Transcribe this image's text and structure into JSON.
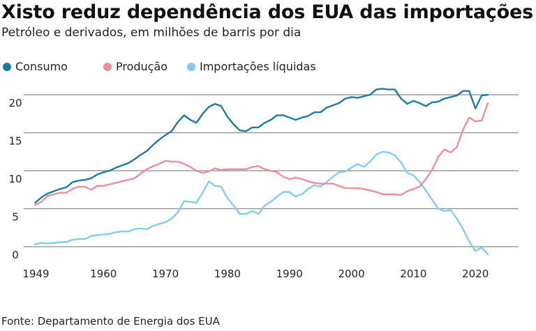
{
  "header": {
    "title": "Xisto reduz dependência dos EUA das importações",
    "subtitle": "Petróleo e derivados, em milhões de barris por dia"
  },
  "legend": [
    {
      "label": "Consumo",
      "color": "#1a7ca6"
    },
    {
      "label": "Produção",
      "color": "#ee8e98"
    },
    {
      "label": "Importações líquidas",
      "color": "#7ecfee"
    }
  ],
  "footer": {
    "source": "Fonte: Departamento de Energia dos EUA"
  },
  "chart_data": {
    "type": "line",
    "title": "Xisto reduz dependência dos EUA das importações",
    "subtitle": "Petróleo e derivados, em milhões de barris por dia",
    "xlabel": "",
    "ylabel": "",
    "xlim": [
      1949,
      2022
    ],
    "ylim": [
      0,
      20
    ],
    "grid": true,
    "legend_position": "top-left",
    "x_ticks": [
      1949,
      1960,
      1970,
      1980,
      1990,
      2000,
      2010,
      2020
    ],
    "y_ticks": [
      0,
      5,
      10,
      15,
      20
    ],
    "x": [
      1949,
      1950,
      1951,
      1952,
      1953,
      1954,
      1955,
      1956,
      1957,
      1958,
      1959,
      1960,
      1961,
      1962,
      1963,
      1964,
      1965,
      1966,
      1967,
      1968,
      1969,
      1970,
      1971,
      1972,
      1973,
      1974,
      1975,
      1976,
      1977,
      1978,
      1979,
      1980,
      1981,
      1982,
      1983,
      1984,
      1985,
      1986,
      1987,
      1988,
      1989,
      1990,
      1991,
      1992,
      1993,
      1994,
      1995,
      1996,
      1997,
      1998,
      1999,
      2000,
      2001,
      2002,
      2003,
      2004,
      2005,
      2006,
      2007,
      2008,
      2009,
      2010,
      2011,
      2012,
      2013,
      2014,
      2015,
      2016,
      2017,
      2018,
      2019,
      2020,
      2021,
      2022
    ],
    "series": [
      {
        "name": "Consumo",
        "color": "#1a7ca6",
        "values": [
          5.8,
          6.5,
          7.0,
          7.3,
          7.6,
          7.8,
          8.5,
          8.7,
          8.8,
          9.0,
          9.5,
          9.8,
          10.0,
          10.4,
          10.7,
          11.0,
          11.5,
          12.1,
          12.6,
          13.4,
          14.1,
          14.7,
          15.2,
          16.4,
          17.3,
          16.7,
          16.3,
          17.5,
          18.4,
          18.8,
          18.5,
          17.1,
          16.1,
          15.3,
          15.2,
          15.7,
          15.7,
          16.3,
          16.7,
          17.3,
          17.3,
          17.0,
          16.7,
          17.0,
          17.2,
          17.7,
          17.7,
          18.3,
          18.6,
          18.9,
          19.5,
          19.7,
          19.6,
          19.8,
          20.0,
          20.7,
          20.8,
          20.7,
          20.7,
          19.5,
          18.8,
          19.2,
          18.9,
          18.5,
          19.0,
          19.1,
          19.5,
          19.7,
          19.9,
          20.5,
          20.5,
          18.2,
          19.9,
          20.0
        ]
      },
      {
        "name": "Produção",
        "color": "#ee8e98",
        "values": [
          5.5,
          5.9,
          6.7,
          6.9,
          7.1,
          7.1,
          7.6,
          7.9,
          7.9,
          7.5,
          8.0,
          8.0,
          8.2,
          8.4,
          8.6,
          8.8,
          9.0,
          9.6,
          10.2,
          10.6,
          10.9,
          11.3,
          11.2,
          11.2,
          10.9,
          10.5,
          10.0,
          9.7,
          9.9,
          10.3,
          10.1,
          10.2,
          10.2,
          10.2,
          10.2,
          10.5,
          10.6,
          10.2,
          10.0,
          9.8,
          9.2,
          8.9,
          9.1,
          8.9,
          8.6,
          8.4,
          8.3,
          8.3,
          8.3,
          8.0,
          7.7,
          7.7,
          7.7,
          7.6,
          7.4,
          7.2,
          6.9,
          6.9,
          6.9,
          6.8,
          7.3,
          7.6,
          7.9,
          8.9,
          10.1,
          11.8,
          12.8,
          12.4,
          13.1,
          15.4,
          17.0,
          16.5,
          16.6,
          18.9
        ]
      },
      {
        "name": "Importações líquidas",
        "color": "#7ecfee",
        "values": [
          0.3,
          0.5,
          0.4,
          0.5,
          0.6,
          0.6,
          0.9,
          1.0,
          1.0,
          1.4,
          1.5,
          1.6,
          1.7,
          1.9,
          2.0,
          2.0,
          2.3,
          2.4,
          2.3,
          2.7,
          3.0,
          3.2,
          3.7,
          4.5,
          6.0,
          5.9,
          5.8,
          7.1,
          8.6,
          8.0,
          7.9,
          6.4,
          5.4,
          4.3,
          4.3,
          4.7,
          4.3,
          5.4,
          5.9,
          6.6,
          7.2,
          7.2,
          6.6,
          6.9,
          7.6,
          8.1,
          7.9,
          8.5,
          9.2,
          9.8,
          9.9,
          10.4,
          10.9,
          10.5,
          11.2,
          12.1,
          12.5,
          12.4,
          12.0,
          11.1,
          9.7,
          9.4,
          8.5,
          7.4,
          6.2,
          5.0,
          4.7,
          4.8,
          3.7,
          2.3,
          0.7,
          -0.6,
          -0.1,
          -1.0
        ]
      }
    ]
  }
}
